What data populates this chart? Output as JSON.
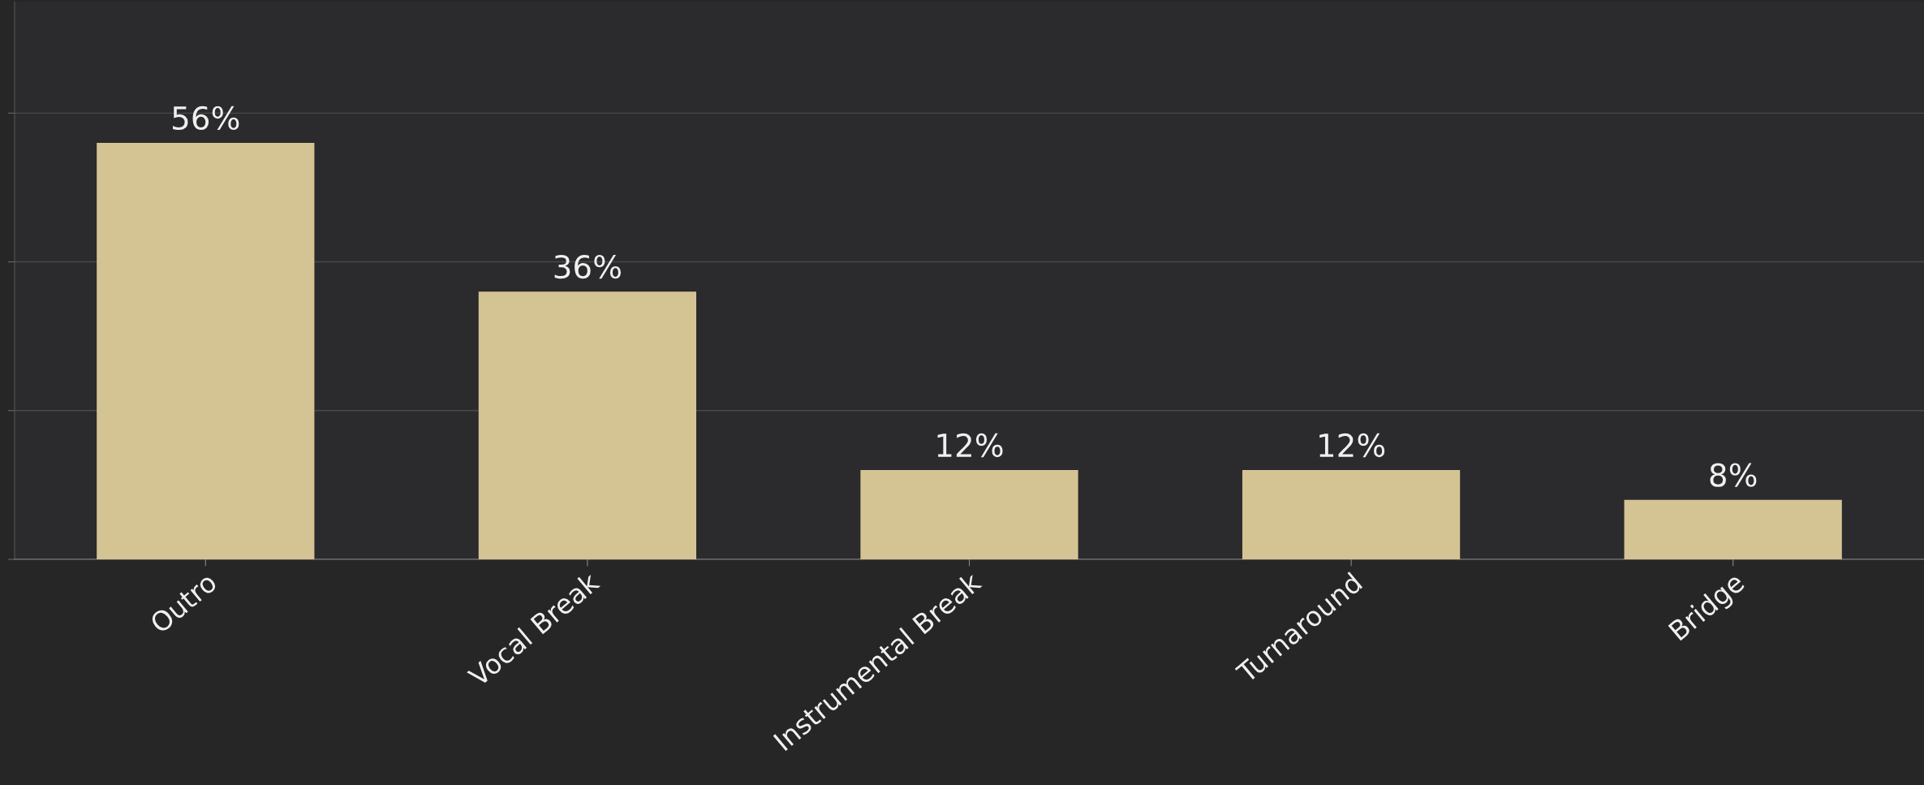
{
  "chart_data": {
    "type": "bar",
    "categories": [
      "Outro",
      "Vocal Break",
      "Instrumental Break",
      "Turnaround",
      "Bridge"
    ],
    "values": [
      56,
      36,
      12,
      12,
      8
    ],
    "value_labels": [
      "56%",
      "36%",
      "12%",
      "12%",
      "8%"
    ],
    "color": "#d4c494",
    "ylim": [
      0,
      75
    ],
    "yticks": [
      {
        "value": 0,
        "label": null
      },
      {
        "value": 20,
        "label": null
      },
      {
        "value": 40,
        "label": null
      },
      {
        "value": 60,
        "label": null
      }
    ],
    "tick_labels": "x",
    "grid": "y"
  }
}
